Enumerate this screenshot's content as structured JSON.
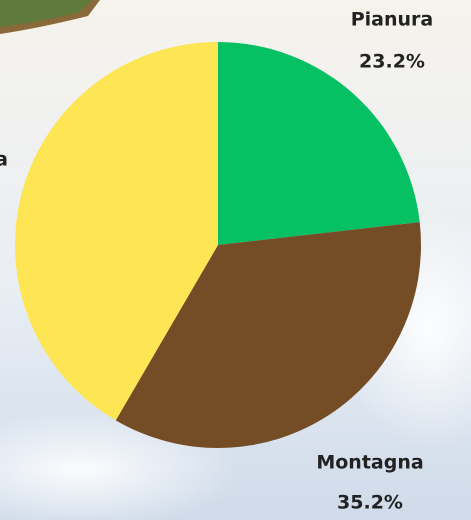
{
  "chart_data": {
    "type": "pie",
    "categories": [
      "Pianura",
      "Montagna",
      "Collina"
    ],
    "values": [
      23.2,
      35.2,
      41.6
    ],
    "value_labels": [
      "23.2%",
      "35.2%",
      null
    ],
    "colors": [
      "#05c163",
      "#744d26",
      "#fde553"
    ]
  }
}
